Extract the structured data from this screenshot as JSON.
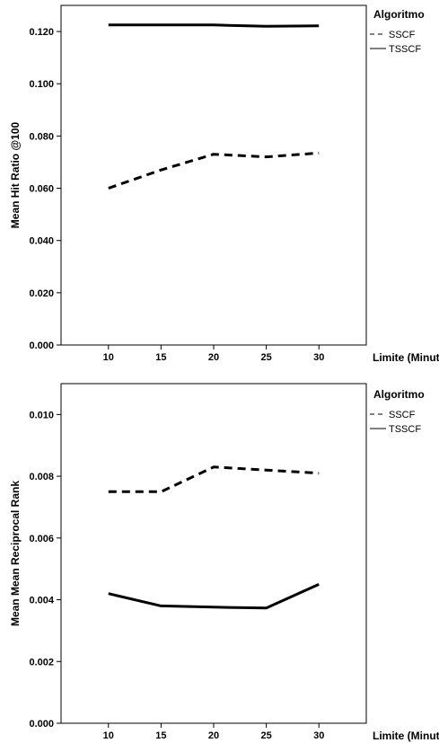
{
  "chart_data": [
    {
      "type": "line",
      "title": "",
      "xlabel": "Limite (Minutos)",
      "ylabel": "Mean Hit Ratio @100",
      "x": [
        10,
        15,
        20,
        25,
        30
      ],
      "ylim": [
        0,
        0.13
      ],
      "xlim": [
        5.5,
        34.5
      ],
      "yticks": [
        "0.000",
        "0.020",
        "0.040",
        "0.060",
        "0.080",
        "0.100",
        "0.120"
      ],
      "xticks": [
        "10",
        "15",
        "20",
        "25",
        "30"
      ],
      "grid": false,
      "legend": {
        "title": "Algoritmo",
        "position": "right"
      },
      "series": [
        {
          "name": "SSCF",
          "style": "dashed",
          "values": [
            0.06,
            0.067,
            0.073,
            0.072,
            0.0735
          ]
        },
        {
          "name": "TSSCF",
          "style": "solid",
          "values": [
            0.1225,
            0.1225,
            0.1225,
            0.122,
            0.1222
          ]
        }
      ]
    },
    {
      "type": "line",
      "title": "",
      "xlabel": "Limite (Minutos)",
      "ylabel": "Mean Mean Reciprocal Rank",
      "x": [
        10,
        15,
        20,
        25,
        30
      ],
      "ylim": [
        0,
        0.011
      ],
      "xlim": [
        5.5,
        34.5
      ],
      "yticks": [
        "0.000",
        "0.002",
        "0.004",
        "0.006",
        "0.008",
        "0.010"
      ],
      "xticks": [
        "10",
        "15",
        "20",
        "25",
        "30"
      ],
      "grid": false,
      "legend": {
        "title": "Algoritmo",
        "position": "right"
      },
      "series": [
        {
          "name": "SSCF",
          "style": "dashed",
          "values": [
            0.0075,
            0.0075,
            0.0083,
            0.0082,
            0.0081
          ]
        },
        {
          "name": "TSSCF",
          "style": "solid",
          "values": [
            0.0042,
            0.0038,
            0.00376,
            0.00373,
            0.0045
          ]
        }
      ]
    }
  ]
}
